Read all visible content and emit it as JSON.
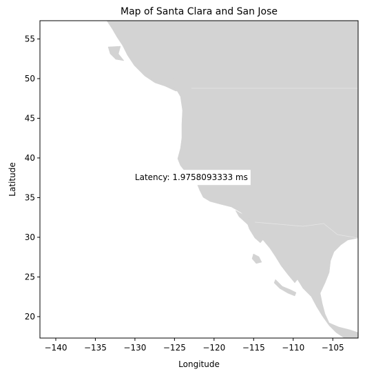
{
  "chart_data": {
    "type": "map",
    "title": "Map of Santa Clara and San Jose",
    "xlabel": "Longitude",
    "ylabel": "Latitude",
    "xlim": [
      -142,
      -101.8
    ],
    "ylim": [
      17.3,
      57.3
    ],
    "xticks": [
      -140,
      -135,
      -130,
      -125,
      -120,
      -115,
      -110,
      -105
    ],
    "xtick_labels": [
      "−140",
      "−135",
      "−130",
      "−125",
      "−120",
      "−115",
      "−110",
      "−105"
    ],
    "yticks": [
      20,
      25,
      30,
      35,
      40,
      45,
      50,
      55
    ],
    "ytick_labels": [
      "20",
      "25",
      "30",
      "35",
      "40",
      "45",
      "50",
      "55"
    ],
    "land_color": "#d3d3d3",
    "ocean_color": "#ffffff",
    "marker_color": "#e03030",
    "points": [
      {
        "lon": -121.9,
        "lat": 37.35
      },
      {
        "lon": -121.9,
        "lat": 37.33
      }
    ],
    "annotation": {
      "text": "Latency: 1.9758093333 ms",
      "lon": -130,
      "lat": 37.5
    }
  }
}
